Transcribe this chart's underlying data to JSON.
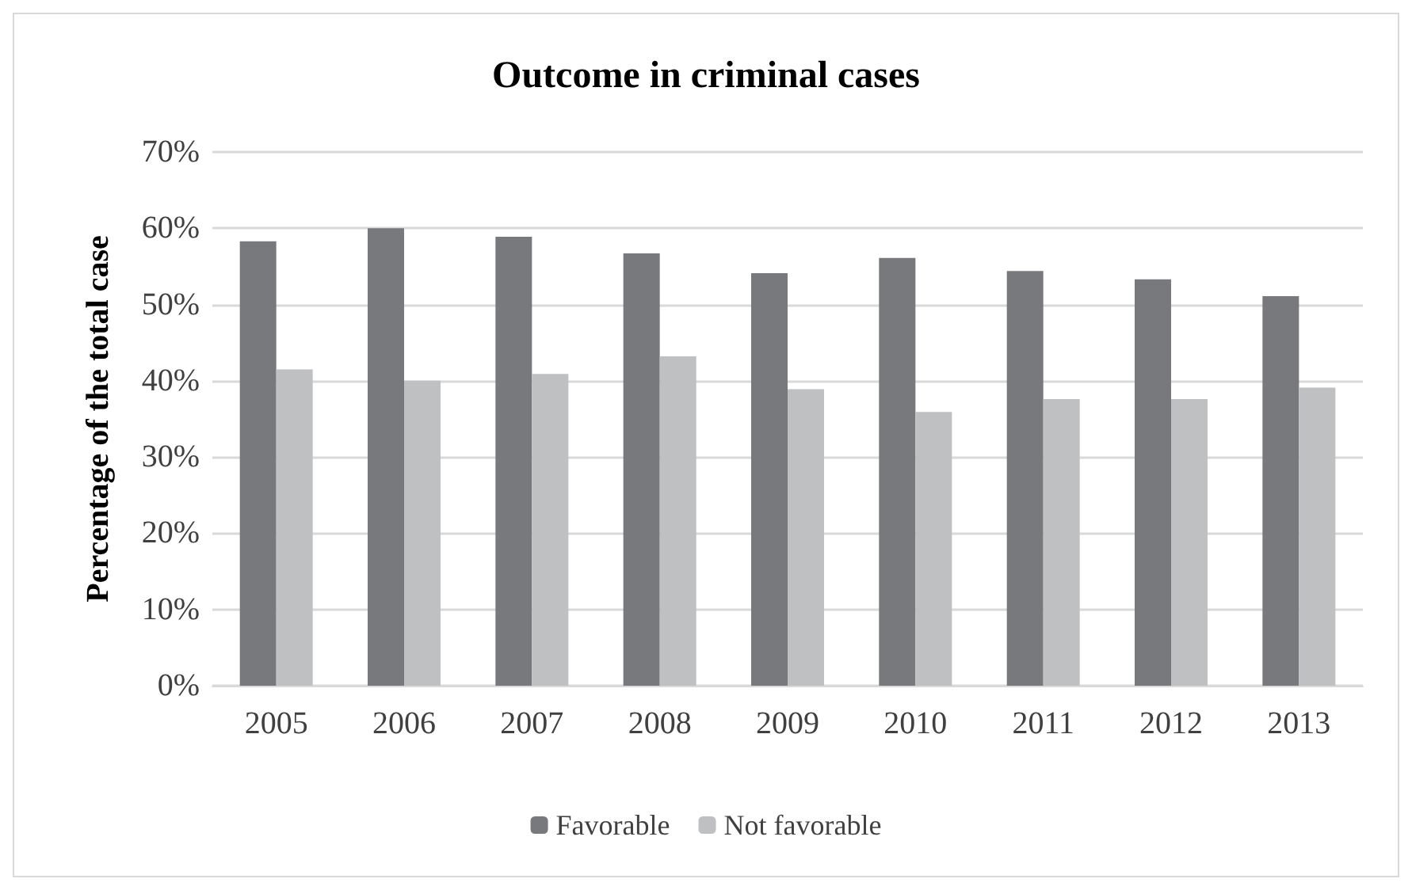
{
  "chart_data": {
    "type": "bar",
    "title": "Outcome in criminal cases",
    "ylabel": "Percentage of the total case",
    "categories": [
      "2005",
      "2006",
      "2007",
      "2008",
      "2009",
      "2010",
      "2011",
      "2012",
      "2013"
    ],
    "series": [
      {
        "name": "Favorable",
        "color": "#78797d",
        "values": [
          58.3,
          60,
          58.9,
          56.7,
          54.1,
          56.1,
          54.4,
          53.3,
          51.1
        ]
      },
      {
        "name": "Not favorable",
        "color": "#bfc0c2",
        "values": [
          41.5,
          40,
          40.9,
          43.2,
          38.9,
          35.9,
          37.6,
          37.6,
          39.1
        ]
      }
    ],
    "ylim": [
      0,
      70
    ],
    "yticks": [
      {
        "value": 0,
        "label": "0%"
      },
      {
        "value": 10,
        "label": "10%"
      },
      {
        "value": 20,
        "label": "20%"
      },
      {
        "value": 30,
        "label": "30%"
      },
      {
        "value": 40,
        "label": "40%"
      },
      {
        "value": 50,
        "label": "50%"
      },
      {
        "value": 60,
        "label": "60%"
      },
      {
        "value": 70,
        "label": "70%"
      }
    ],
    "grid": "y",
    "legend": "bottom"
  }
}
